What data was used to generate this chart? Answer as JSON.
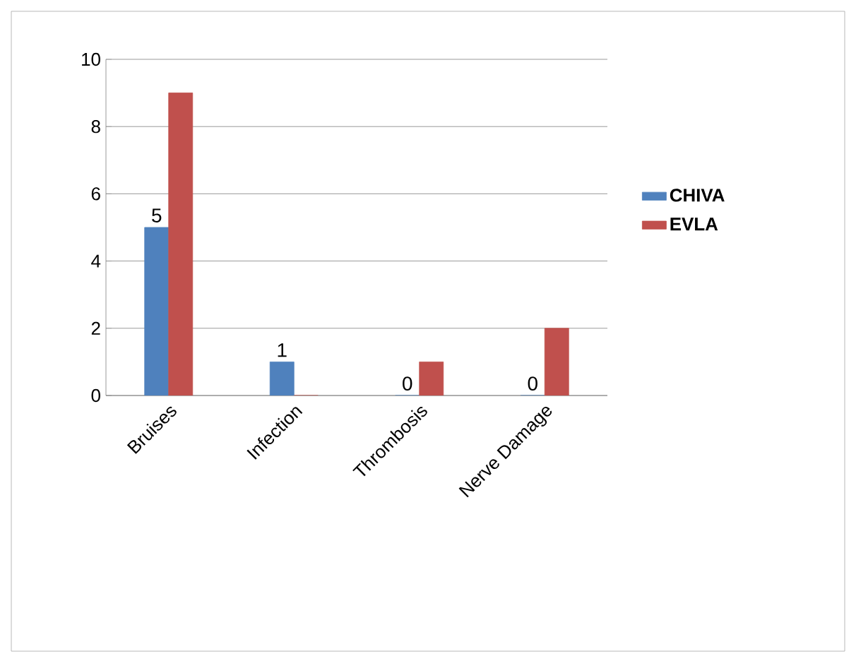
{
  "chart_data": {
    "type": "bar",
    "categories": [
      "Bruises",
      "Infection",
      "Thrombosis",
      "Nerve Damage"
    ],
    "series": [
      {
        "name": "CHIVA",
        "color": "#4f81bd",
        "values": [
          5,
          1,
          0,
          0
        ],
        "value_labels": [
          "5",
          "1",
          "0",
          "0"
        ]
      },
      {
        "name": "EVLA",
        "color": "#c0504d",
        "values": [
          9,
          0,
          1,
          2
        ]
      }
    ],
    "ylim": [
      0,
      10
    ],
    "yticks": [
      0,
      2,
      4,
      6,
      8,
      10
    ],
    "grid": "y",
    "legend": "right"
  }
}
